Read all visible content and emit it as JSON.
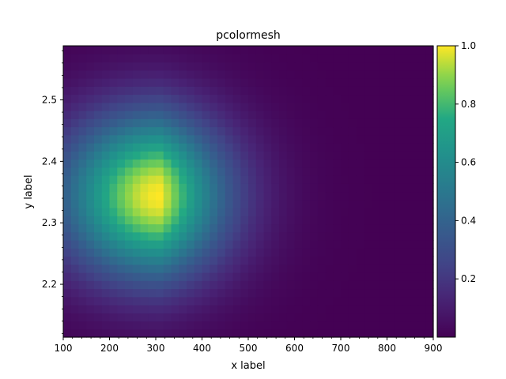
{
  "chart_data": {
    "type": "heatmap",
    "title": "pcolormesh",
    "xlabel": "x label",
    "ylabel": "y label",
    "xlim": [
      100,
      900
    ],
    "ylim": [
      2.114,
      2.588
    ],
    "x_ticks": [
      100,
      200,
      300,
      400,
      500,
      600,
      700,
      800,
      900
    ],
    "x_tick_labels": [
      "100",
      "200",
      "300",
      "400",
      "500",
      "600",
      "700",
      "800",
      "900"
    ],
    "y_ticks": [
      2.2,
      2.3,
      2.4,
      2.5
    ],
    "y_tick_labels": [
      "2.2",
      "2.3",
      "2.4",
      "2.5"
    ],
    "colorbar": {
      "min": 0.0,
      "max": 1.0,
      "ticks": [
        0.2,
        0.4,
        0.6,
        0.8,
        1.0
      ],
      "tick_labels": [
        "0.2",
        "0.4",
        "0.6",
        "0.8",
        "1.0"
      ],
      "colormap": "viridis"
    },
    "grid": {
      "nx": 48,
      "ny": 36,
      "peak_x": 310,
      "peak_y": 2.345,
      "peak_value": 1.0,
      "sigma_x": 150,
      "sigma_y": 0.095,
      "decay_x": 250
    }
  }
}
